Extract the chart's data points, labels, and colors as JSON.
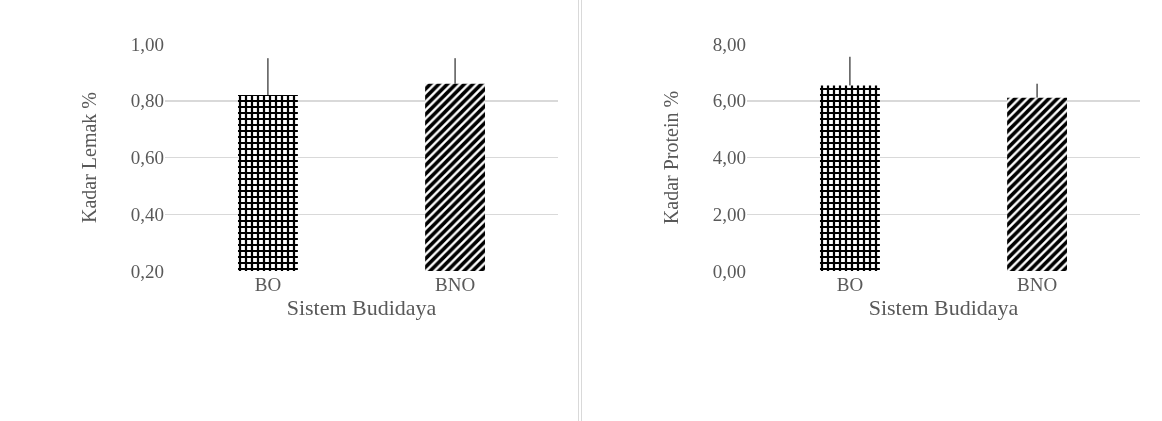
{
  "chart_data": [
    {
      "type": "bar",
      "categories": [
        "BO",
        "BNO"
      ],
      "values": [
        0.82,
        0.86
      ],
      "colors": [
        "#000000",
        "#000000"
      ],
      "errors": [
        [
          0.82,
          0.95
        ],
        [
          0.86,
          0.95
        ]
      ],
      "xlabel": "Sistem Budidaya",
      "ylabel": "Kadar Lemak %",
      "ylim": [
        0.2,
        1.0
      ],
      "yticks": [
        {
          "value": 0.2,
          "label": "0,20"
        },
        {
          "value": 0.4,
          "label": "0,40"
        },
        {
          "value": 0.6,
          "label": "0,60"
        },
        {
          "value": 0.8,
          "label": "0,80"
        },
        {
          "value": 1.0,
          "label": "1,00"
        }
      ],
      "grid": "y"
    },
    {
      "type": "bar",
      "categories": [
        "BO",
        "BNO"
      ],
      "values": [
        6.54,
        6.11
      ],
      "colors": [
        "#000000",
        "#000000"
      ],
      "errors": [
        [
          6.54,
          7.55
        ],
        [
          6.11,
          6.6
        ]
      ],
      "xlabel": "Sistem Budidaya",
      "ylabel": "Kadar Protein %",
      "ylim": [
        0,
        8
      ],
      "yticks": [
        {
          "value": 0,
          "label": "0,00"
        },
        {
          "value": 2,
          "label": "2,00"
        },
        {
          "value": 4,
          "label": "4,00"
        },
        {
          "value": 6,
          "label": "6,00"
        },
        {
          "value": 8,
          "label": "8,00"
        }
      ],
      "grid": "y"
    }
  ]
}
